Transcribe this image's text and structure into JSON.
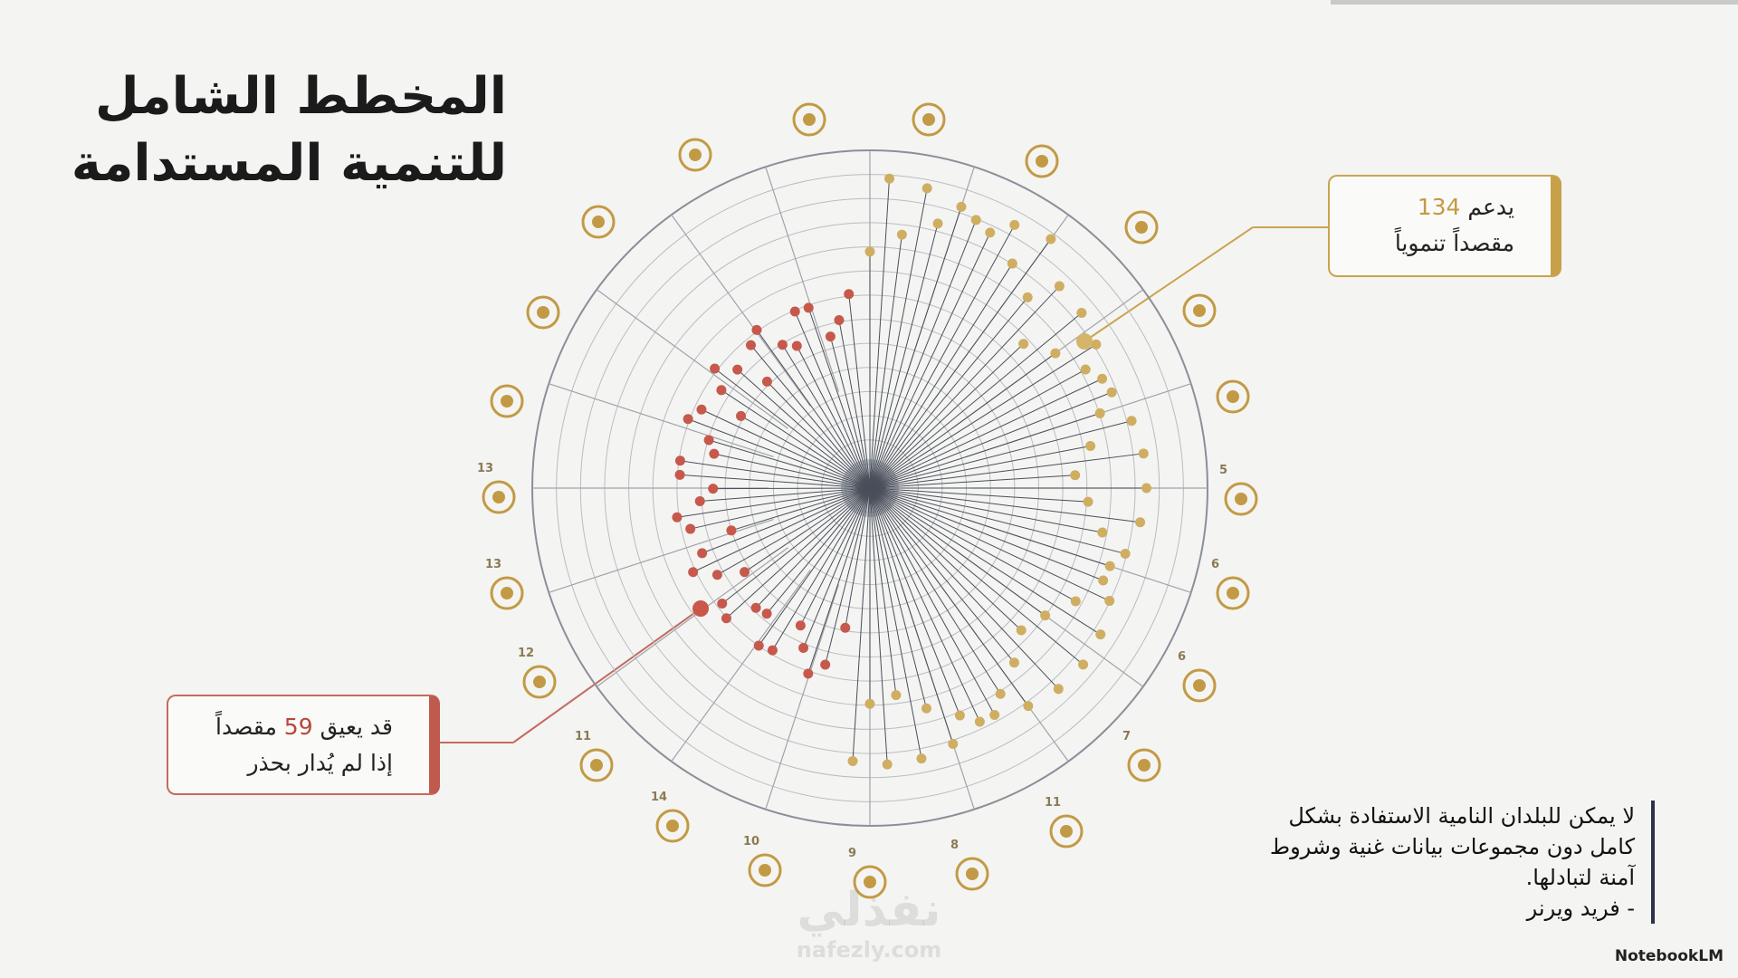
{
  "title": {
    "line1": "المخطط الشامل",
    "line2": "للتنمية المستدامة"
  },
  "callout_support": {
    "before": "يدعم",
    "number": 134,
    "line2": "مقصداً تنموياً"
  },
  "callout_hinder": {
    "before": "قد يعيق",
    "number": 59,
    "after": "مقصداً",
    "line2": "إذا لم يُدار بحذر"
  },
  "quote": {
    "lines": [
      "لا يمكن للبلدان النامية الاستفادة بشكل",
      "كامل دون مجموعات بيانات غنية وشروط",
      "آمنة لتبادلها."
    ],
    "author": "- فريد ويرنر"
  },
  "icon_labels": [
    "5",
    "6",
    "6",
    "7",
    "11",
    "8",
    "9",
    "10",
    "14",
    "11",
    "12",
    "13",
    "13"
  ],
  "watermark": {
    "arabic": "نفذلي",
    "latin": "nafezly.com"
  },
  "brand": "NotebookLM"
}
